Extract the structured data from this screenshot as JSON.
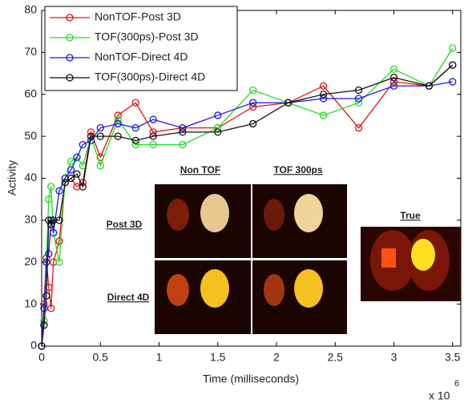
{
  "chart_data": {
    "type": "line",
    "xlabel": "Time (milliseconds)",
    "ylabel": "Activity",
    "x_scale_label": "x 10",
    "x_scale_power": "6",
    "xlim": [
      0,
      3.57
    ],
    "ylim": [
      0,
      80
    ],
    "xticks": [
      0,
      0.5,
      1,
      1.5,
      2,
      2.5,
      3,
      3.5
    ],
    "yticks": [
      0,
      10,
      20,
      30,
      40,
      50,
      60,
      70,
      80
    ],
    "legend": "upper left",
    "x": [
      0,
      0.02,
      0.04,
      0.06,
      0.08,
      0.1,
      0.15,
      0.2,
      0.25,
      0.3,
      0.35,
      0.42,
      0.5,
      0.65,
      0.8,
      0.95,
      1.2,
      1.5,
      1.8,
      2.1,
      2.4,
      2.7,
      3.0,
      3.3,
      3.5
    ],
    "series": [
      {
        "name": "NonTOF-Post 3D",
        "color": "#e81010",
        "values": [
          0,
          10,
          21,
          14,
          9,
          20,
          25,
          39,
          40,
          38,
          39,
          51,
          45,
          55,
          58,
          51,
          52,
          52,
          57,
          58,
          62,
          52,
          63,
          62,
          67
        ]
      },
      {
        "name": "TOF(300ps)-Post 3D",
        "color": "#22dd22",
        "values": [
          0,
          6,
          20,
          35,
          38,
          27,
          20,
          40,
          44,
          45,
          43,
          50,
          43,
          54,
          48,
          48,
          48,
          52,
          61,
          58,
          55,
          58,
          66,
          62,
          71
        ]
      },
      {
        "name": "NonTOF-Direct 4D",
        "color": "#1a1ae0",
        "values": [
          0,
          9,
          20,
          22,
          30,
          27,
          37,
          40,
          42,
          45,
          48,
          49,
          52,
          53,
          52,
          54,
          52,
          55,
          58,
          58,
          59,
          59,
          62,
          62,
          63
        ]
      },
      {
        "name": "TOF(300ps)-Direct 4D",
        "color": "#111111",
        "values": [
          0,
          5,
          12,
          30,
          29,
          30,
          30,
          39,
          40,
          41,
          38,
          50,
          50,
          50,
          49,
          50,
          51,
          51,
          53,
          58,
          60,
          61,
          64,
          62,
          67
        ]
      }
    ],
    "annotations": {
      "col1": "Non TOF",
      "col2": "TOF 300ps",
      "row1": "Post 3D",
      "row2": "Direct 4D",
      "truth": "True"
    }
  }
}
